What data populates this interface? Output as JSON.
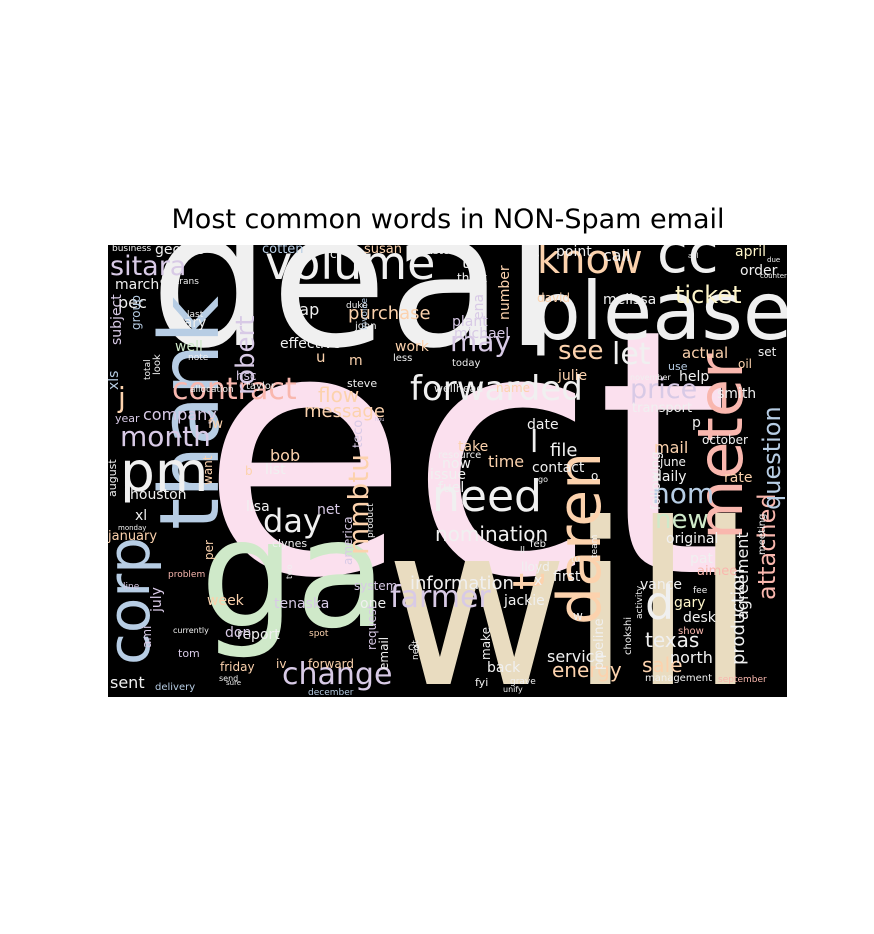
{
  "title": "Most common words in NON-Spam email",
  "cloud": {
    "background": "#000000",
    "palette": [
      "#fbe0ee",
      "#f0f0f0",
      "#cfe9c9",
      "#e9dcc0",
      "#b7cde4",
      "#d8cae6",
      "#fcd2ad",
      "#f9b7ae",
      "#fef5c9"
    ],
    "words": [
      "ect",
      "deal",
      "will",
      "ga",
      "thank",
      "please",
      "meter",
      "pm",
      "corp",
      "daren",
      "volume",
      "know",
      "cc",
      "need",
      "hou",
      "mmbtu",
      "attached",
      "question",
      "forwarded",
      "contract",
      "sitara",
      "robert",
      "d",
      "t",
      "j",
      "month",
      "day",
      "farmer",
      "change",
      "see",
      "let",
      "may",
      "price",
      "ticket",
      "nom",
      "new",
      "nomination",
      "production",
      "texas",
      "sale",
      "energy",
      "service",
      "north",
      "information",
      "flow",
      "message",
      "company",
      "purchase",
      "tap",
      "work",
      "effective",
      "pec",
      "march",
      "george",
      "mary",
      "group",
      "well",
      "xls",
      "subject",
      "hsc",
      "year",
      "fw",
      "houston",
      "xl",
      "august",
      "january",
      "july",
      "ami",
      "line",
      "sent",
      "delivery",
      "tom",
      "report",
      "friday",
      "iv",
      "forward",
      "don",
      "tenaska",
      "one",
      "request",
      "email",
      "system",
      "america",
      "lisa",
      "net",
      "bob",
      "list",
      "want",
      "b",
      "per",
      "week",
      "clynes",
      "teco",
      "take",
      "now",
      "issue",
      "fuel",
      "time",
      "file",
      "contact",
      "date",
      "l",
      "x",
      "jackie",
      "pipeline",
      "make",
      "back",
      "fyi",
      "first",
      "julie",
      "name",
      "steve",
      "wellhead",
      "resource",
      "michael",
      "plant",
      "ena",
      "th",
      "think",
      "number",
      "david",
      "point",
      "call",
      "melissa",
      "actual",
      "april",
      "order",
      "set",
      "oil",
      "help",
      "smith",
      "transport",
      "october",
      "mail",
      "june",
      "daily",
      "following",
      "original",
      "pat",
      "aimee",
      "vance",
      "gary",
      "desk",
      "show",
      "management",
      "september",
      "agreement",
      "meeting",
      "rate",
      "p",
      "cotten",
      "susan",
      "customer",
      "business",
      "eastrans",
      "c",
      "mark",
      "duke",
      "john",
      "invoice",
      "m",
      "less",
      "u",
      "today",
      "last",
      "note",
      "allocation",
      "taylor",
      "look",
      "total",
      "monday",
      "problem",
      "currently",
      "two",
      "spot",
      "send",
      "december",
      "unify",
      "grave",
      "lloyd",
      "feb",
      "product",
      "co",
      "next",
      "sure",
      "w",
      "go",
      "tu",
      "team",
      "chokshi",
      "activity",
      "fee",
      "o",
      "february",
      "november",
      "use",
      "counterparty",
      "due",
      "aol",
      "ll"
    ]
  }
}
